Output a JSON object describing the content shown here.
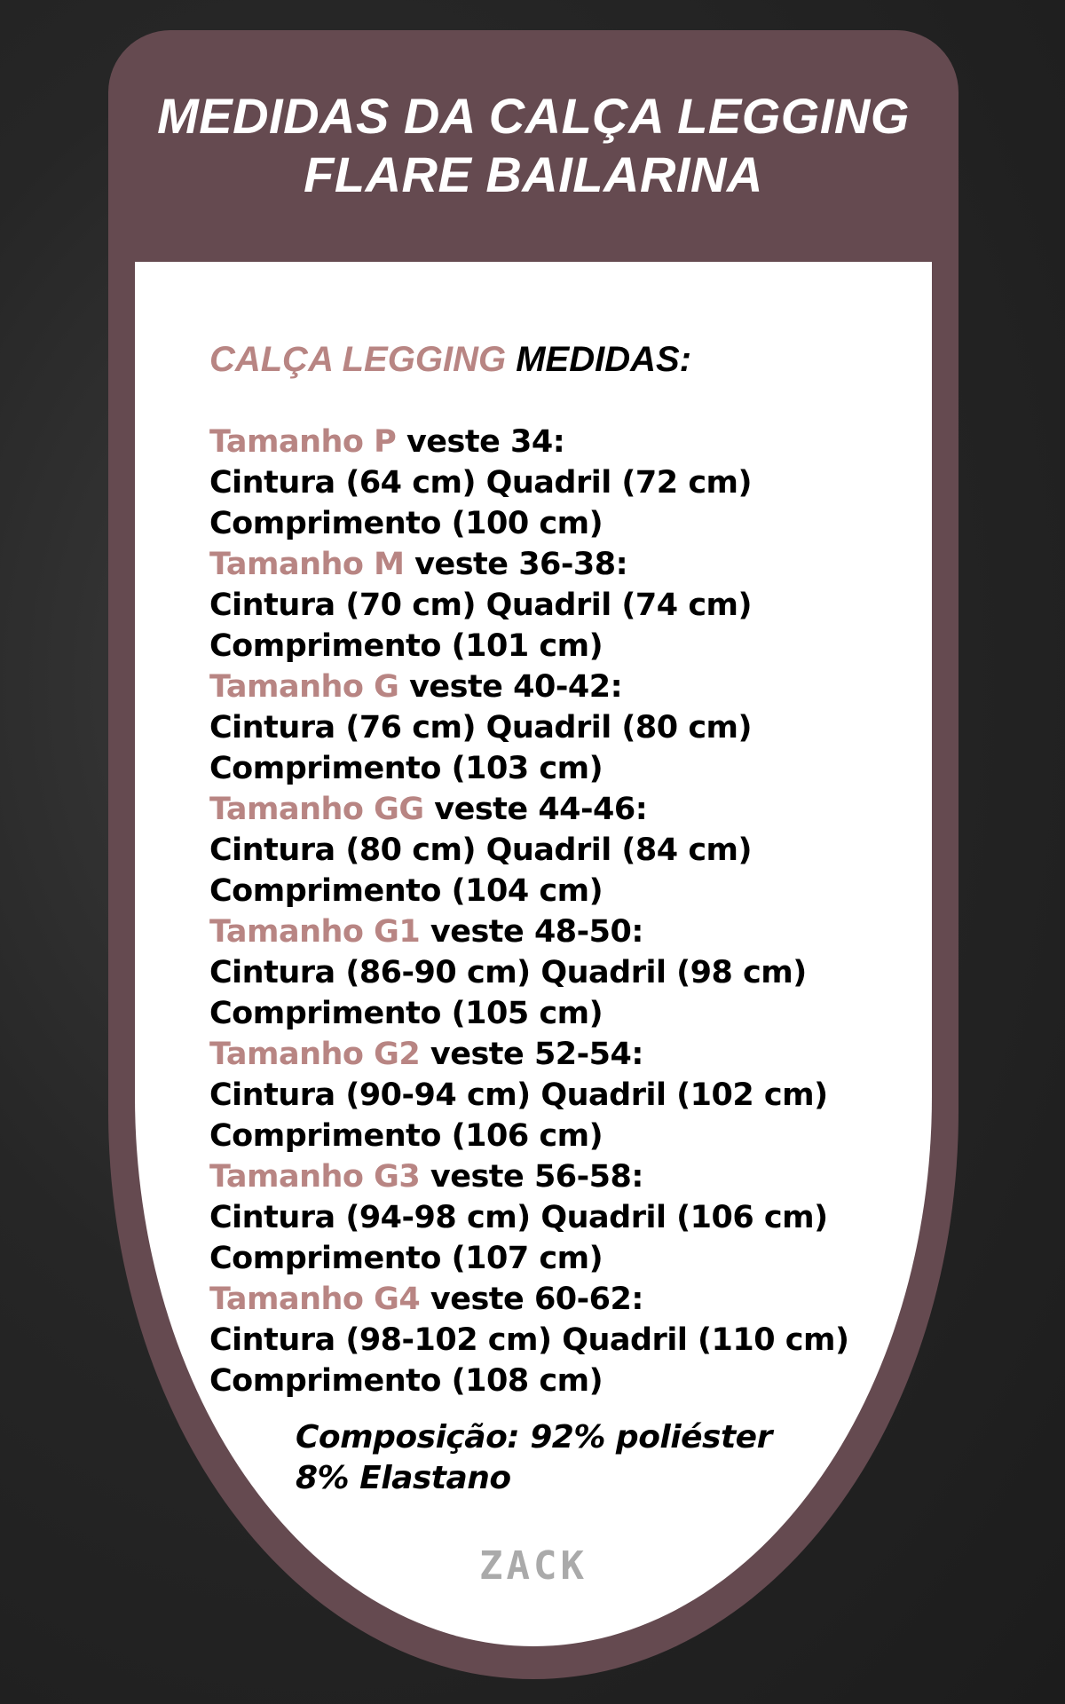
{
  "title": {
    "line1": "MEDIDAS DA CALÇA LEGGING",
    "line2": "FLARE BAILARINA"
  },
  "heading": {
    "accent": "CALÇA LEGGING",
    "rest": "MEDIDAS:"
  },
  "labels": {
    "veste": "veste",
    "cintura": "Cintura",
    "quadril": "Quadril",
    "comprimento": "Comprimento"
  },
  "sizes": [
    {
      "name": "Tamanho P",
      "veste": "34",
      "cintura": "64 cm",
      "quadril": "72 cm",
      "comprimento": "100 cm"
    },
    {
      "name": "Tamanho M",
      "veste": "36-38",
      "cintura": "70 cm",
      "quadril": "74 cm",
      "comprimento": "101 cm"
    },
    {
      "name": "Tamanho G",
      "veste": "40-42",
      "cintura": "76 cm",
      "quadril": "80 cm",
      "comprimento": "103 cm"
    },
    {
      "name": "Tamanho GG",
      "veste": "44-46",
      "cintura": "80 cm",
      "quadril": "84 cm",
      "comprimento": "104 cm"
    },
    {
      "name": "Tamanho G1",
      "veste": "48-50",
      "cintura": "86-90 cm",
      "quadril": "98 cm",
      "comprimento": "105 cm"
    },
    {
      "name": "Tamanho G2",
      "veste": "52-54",
      "cintura": "90-94 cm",
      "quadril": "102 cm",
      "comprimento": "106 cm"
    },
    {
      "name": "Tamanho G3",
      "veste": "56-58",
      "cintura": "94-98 cm",
      "quadril": "106 cm",
      "comprimento": "107 cm"
    },
    {
      "name": "Tamanho G4",
      "veste": "60-62",
      "cintura": "98-102 cm",
      "quadril": "110 cm",
      "comprimento": "108 cm"
    }
  ],
  "composition": {
    "line1": "Composição: 92% poliéster",
    "line2": "8% Elastano"
  },
  "logo": "ZACK",
  "colors": {
    "card": "#654a50",
    "accent": "#b88583",
    "logo": "#aaaaaa"
  }
}
